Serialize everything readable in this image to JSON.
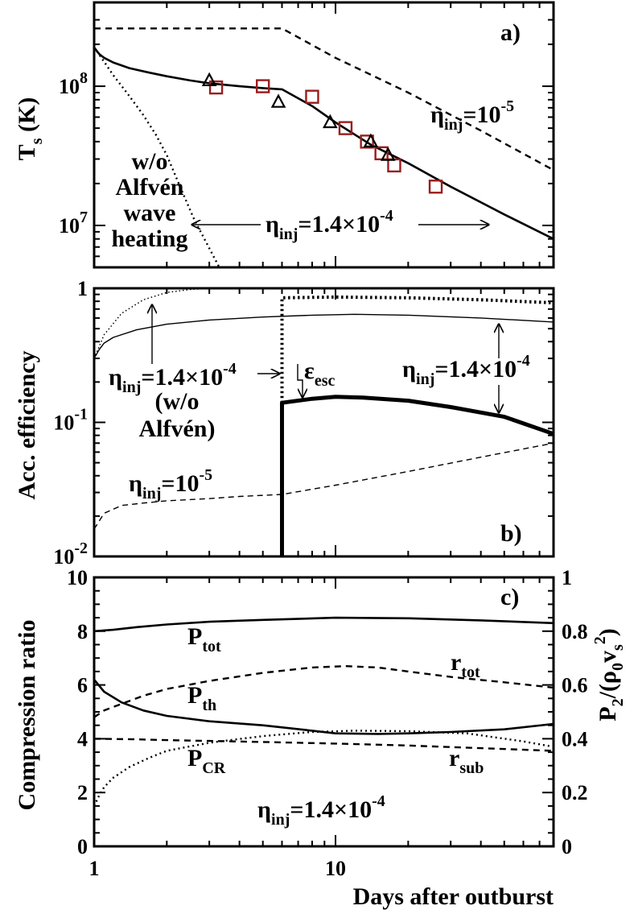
{
  "shared": {
    "xlabel": "Days after outburst",
    "xscale": "log",
    "xlim": [
      1,
      80
    ],
    "xticks": [
      {
        "v": 1,
        "t": "1"
      },
      {
        "v": 10,
        "t": "10"
      }
    ]
  },
  "chart_data": [
    {
      "panel_label": "a)",
      "type": "line",
      "ylabel": "T",
      "ylabel_sub": "s",
      "ylabel_unit": " (K)",
      "yscale": "log",
      "ylim": [
        5000000,
        400000000
      ],
      "yticks": [
        {
          "v": 10000000,
          "b": "10",
          "e": "7"
        },
        {
          "v": 100000000,
          "b": "10",
          "e": "8"
        }
      ],
      "series": [
        {
          "style": "solid",
          "x": [
            1,
            1.05,
            1.1,
            1.2,
            1.4,
            1.7,
            2,
            2.5,
            3,
            4,
            5,
            6,
            8,
            10,
            14,
            20,
            30,
            50,
            80
          ],
          "y": [
            190000000,
            170000000,
            160000000,
            148000000,
            135000000,
            125000000,
            118000000,
            110000000,
            105000000,
            100000000,
            97000000,
            95000000,
            72000000,
            55000000,
            38000000,
            28000000,
            19000000,
            12000000,
            8000000
          ]
        },
        {
          "style": "dashed",
          "x": [
            1,
            6,
            10,
            20,
            40,
            80
          ],
          "y": [
            260000000,
            260000000,
            160000000,
            90000000,
            48000000,
            25000000
          ]
        },
        {
          "style": "dotted",
          "x": [
            1,
            1.1,
            1.2,
            1.4,
            1.6,
            1.8,
            2,
            2.3,
            2.6,
            3.3
          ],
          "y": [
            190000000,
            150000000,
            120000000,
            85000000,
            62000000,
            45000000,
            32000000,
            18000000,
            11000000,
            5000000
          ]
        }
      ],
      "markers": {
        "squares": {
          "color": "#9b1c1c",
          "x": [
            3.2,
            5,
            8,
            11,
            13.5,
            15.5,
            17.5,
            26
          ],
          "y": [
            98000000,
            100000000,
            84000000,
            50000000,
            40000000,
            33000000,
            27000000,
            19000000
          ]
        },
        "triangles": {
          "color": "#000000",
          "x": [
            3,
            5.8,
            9.5,
            14,
            16.5
          ],
          "y": [
            110000000,
            77000000,
            55000000,
            40000000,
            32000000
          ]
        }
      },
      "annotations": {
        "eta_dashed": {
          "pre": "η",
          "sub": "inj",
          "mid": "=10",
          "sup": "-5"
        },
        "eta_solid": {
          "pre": "η",
          "sub": "inj",
          "mid": "=1.4×10",
          "sup": "-4"
        },
        "wo_lines": [
          "w/o",
          "Alfvén",
          "wave",
          "heating"
        ]
      }
    },
    {
      "panel_label": "b)",
      "type": "line",
      "ylabel": "Acc. efficiency",
      "yscale": "log",
      "ylim": [
        0.01,
        1
      ],
      "yticks": [
        {
          "v": 0.01,
          "b": "10",
          "e": "-2"
        },
        {
          "v": 0.1,
          "b": "10",
          "e": "-1"
        },
        {
          "v": 1,
          "t": "1"
        }
      ],
      "series": [
        {
          "style": "thin-solid",
          "x": [
            1,
            1.05,
            1.1,
            1.2,
            1.5,
            2,
            3,
            5,
            8,
            12,
            20,
            40,
            80
          ],
          "y": [
            0.3,
            0.35,
            0.39,
            0.43,
            0.49,
            0.54,
            0.58,
            0.61,
            0.63,
            0.64,
            0.63,
            0.6,
            0.56
          ]
        },
        {
          "style": "thin-dotted",
          "x": [
            1,
            1.1,
            1.3,
            1.6,
            2,
            2.5,
            3,
            4,
            5
          ],
          "y": [
            0.3,
            0.45,
            0.65,
            0.82,
            0.93,
            0.98,
            1,
            1,
            1
          ]
        },
        {
          "style": "thick-dotted",
          "x": [
            6,
            6,
            10,
            20,
            40,
            80
          ],
          "y": [
            0.14,
            0.85,
            0.86,
            0.85,
            0.82,
            0.78
          ]
        },
        {
          "style": "thick-solid",
          "x": [
            6,
            6,
            8,
            10,
            13,
            20,
            30,
            50,
            80
          ],
          "y": [
            0.01,
            0.14,
            0.15,
            0.155,
            0.153,
            0.145,
            0.13,
            0.11,
            0.082
          ]
        },
        {
          "style": "thin-dashed",
          "x": [
            1,
            1.1,
            1.3,
            1.6,
            2,
            3,
            4,
            6,
            10,
            20,
            40,
            80
          ],
          "y": [
            0.016,
            0.021,
            0.024,
            0.025,
            0.026,
            0.027,
            0.028,
            0.029,
            0.034,
            0.043,
            0.055,
            0.07
          ]
        }
      ],
      "annotations": {
        "eta_left": {
          "pre": "η",
          "sub": "inj",
          "mid": "=1.4×10",
          "sup": "-4"
        },
        "wo_lines": [
          "(w/o",
          "Alfvén)"
        ],
        "eps": {
          "pre": "ε",
          "sub": "esc"
        },
        "eta_right": {
          "pre": "η",
          "sub": "inj",
          "mid": "=1.4×10",
          "sup": "-4"
        },
        "eta_dashed": {
          "pre": "η",
          "sub": "inj",
          "mid": "=10",
          "sup": "-5"
        }
      }
    },
    {
      "panel_label": "c)",
      "type": "line",
      "ylabel": "Compression ratio",
      "yscale": "linear",
      "ylim": [
        0,
        10
      ],
      "yticks": [
        {
          "v": 0,
          "t": "0"
        },
        {
          "v": 2,
          "t": "2"
        },
        {
          "v": 4,
          "t": "4"
        },
        {
          "v": 6,
          "t": "6"
        },
        {
          "v": 8,
          "t": "8"
        },
        {
          "v": 10,
          "t": "10"
        }
      ],
      "y2label_parts": {
        "a": "P",
        "a_sub": "2",
        "b": "/(ρ",
        "b_sub": "0",
        "c": "v",
        "c_sub": "s",
        "d": "2",
        "e": ")"
      },
      "y2lim": [
        0,
        1
      ],
      "y2ticks": [
        {
          "v": 0,
          "t": "0"
        },
        {
          "v": 0.2,
          "t": "0.2"
        },
        {
          "v": 0.4,
          "t": "0.4"
        },
        {
          "v": 0.6,
          "t": "0.6"
        },
        {
          "v": 0.8,
          "t": "0.8"
        },
        {
          "v": 1,
          "t": "1"
        }
      ],
      "series": [
        {
          "name": "P_tot",
          "style": "solid",
          "x": [
            1,
            1.2,
            1.5,
            2,
            3,
            5,
            10,
            20,
            40,
            80
          ],
          "y": [
            8,
            8.05,
            8.15,
            8.25,
            8.35,
            8.42,
            8.5,
            8.48,
            8.4,
            8.3
          ]
        },
        {
          "name": "r_tot",
          "style": "dashed",
          "x": [
            1,
            1.1,
            1.3,
            1.6,
            2,
            3,
            5,
            8,
            11,
            15,
            20,
            30,
            50,
            80
          ],
          "y": [
            4.8,
            5.05,
            5.3,
            5.6,
            5.85,
            6.15,
            6.45,
            6.65,
            6.7,
            6.65,
            6.5,
            6.3,
            6.1,
            5.9
          ]
        },
        {
          "name": "P_th",
          "style": "solid",
          "x": [
            1,
            1.1,
            1.3,
            1.6,
            2,
            3,
            5,
            8,
            10,
            15,
            20,
            30,
            50,
            80
          ],
          "y": [
            6.2,
            5.75,
            5.35,
            5.05,
            4.85,
            4.65,
            4.5,
            4.3,
            4.2,
            4.18,
            4.2,
            4.25,
            4.35,
            4.55
          ]
        },
        {
          "name": "r_sub",
          "style": "dashed",
          "x": [
            1,
            1.5,
            2,
            3,
            5,
            10,
            20,
            40,
            80
          ],
          "y": [
            4,
            3.98,
            3.95,
            3.92,
            3.88,
            3.82,
            3.75,
            3.65,
            3.55
          ]
        },
        {
          "name": "P_CR",
          "style": "dotted",
          "x": [
            1,
            1.05,
            1.1,
            1.2,
            1.4,
            1.7,
            2,
            3,
            5,
            8,
            12,
            20,
            35,
            60,
            80
          ],
          "y": [
            1.5,
            1.9,
            2.2,
            2.55,
            2.95,
            3.3,
            3.55,
            3.85,
            4.1,
            4.25,
            4.3,
            4.28,
            4.2,
            3.9,
            3.7
          ]
        }
      ],
      "labels": {
        "P_tot": {
          "b": "P",
          "s": "tot"
        },
        "r_tot": {
          "b": "r",
          "s": "tot"
        },
        "P_th": {
          "b": "P",
          "s": "th"
        },
        "r_sub": {
          "b": "r",
          "s": "sub"
        },
        "P_CR": {
          "b": "P",
          "s": "CR"
        },
        "eta": {
          "pre": "η",
          "sub": "inj",
          "mid": "=1.4×10",
          "sup": "-4"
        }
      }
    }
  ]
}
